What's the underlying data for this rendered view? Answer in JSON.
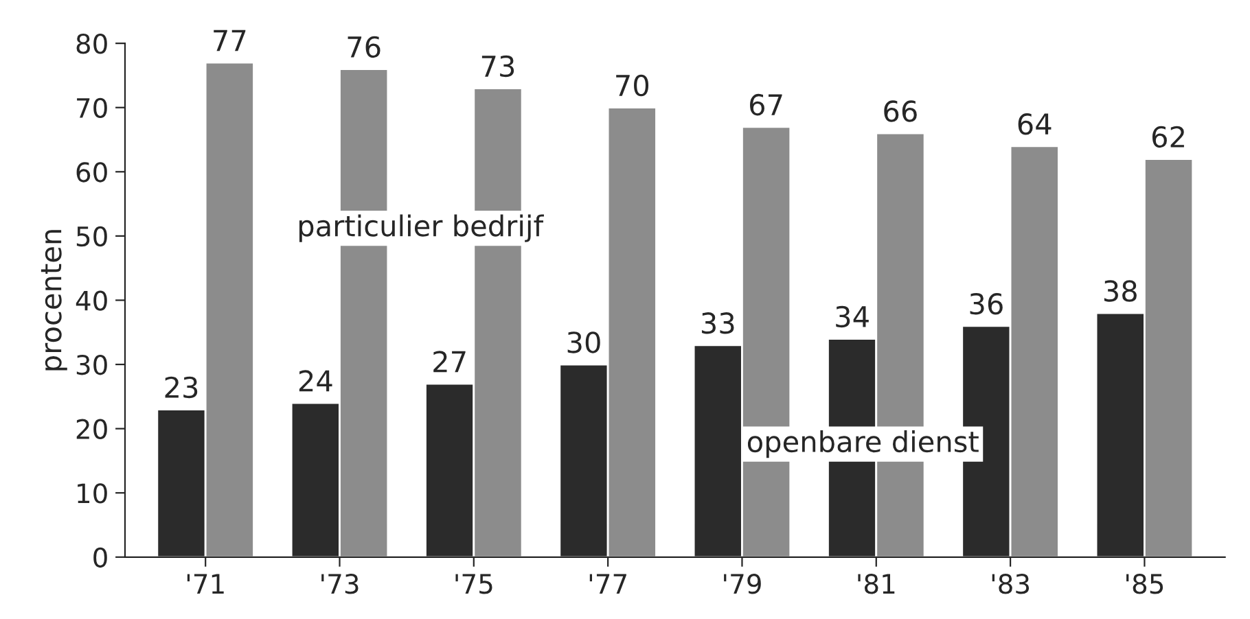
{
  "chart_data": {
    "type": "bar",
    "ylabel": "procenten",
    "categories": [
      "'71",
      "'73",
      "'75",
      "'77",
      "'79",
      "'81",
      "'83",
      "'85"
    ],
    "series": [
      {
        "name": "openbare dienst",
        "color": "#2b2b2b",
        "values": [
          23,
          24,
          27,
          30,
          33,
          34,
          36,
          38
        ]
      },
      {
        "name": "particulier bedrijf",
        "color": "#8c8c8c",
        "values": [
          77,
          76,
          73,
          70,
          67,
          66,
          64,
          62
        ]
      }
    ],
    "ylim": [
      0,
      80
    ],
    "yticks": [
      0,
      10,
      20,
      30,
      40,
      50,
      60,
      70,
      80
    ],
    "data_labels": true,
    "legend": false,
    "grid": false
  }
}
